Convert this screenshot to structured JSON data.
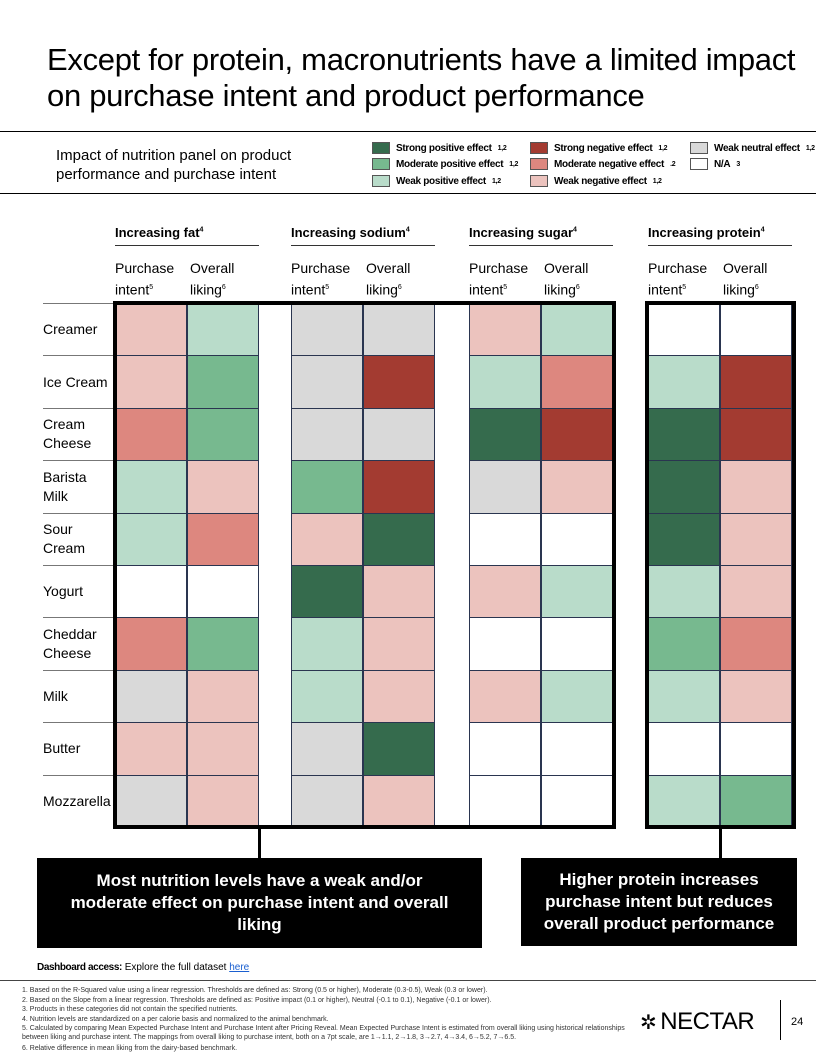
{
  "title": "Except for protein, macronutrients have a limited impact on purchase intent and product performance",
  "subtitle": "Impact of nutrition panel on product performance and purchase intent",
  "colors": {
    "SP": "#356b4d",
    "MP": "#77b98f",
    "WP": "#b9dcca",
    "SN": "#a33b31",
    "MN": "#dd877f",
    "WN": "#ecc3be",
    "WU": "#d9d9d9",
    "NA": "#ffffff"
  },
  "legend": [
    {
      "code": "SP",
      "label": "Strong positive effect",
      "sup": "1,2"
    },
    {
      "code": "MP",
      "label": "Moderate positive effect",
      "sup": "1,2"
    },
    {
      "code": "WP",
      "label": "Weak positive effect",
      "sup": "1,2"
    },
    {
      "code": "SN",
      "label": "Strong negative effect",
      "sup": "1,2"
    },
    {
      "code": "MN",
      "label": "Moderate negative effect",
      "sup": ".2"
    },
    {
      "code": "WN",
      "label": "Weak negative effect",
      "sup": "1,2"
    },
    {
      "code": "WU",
      "label": "Weak neutral effect",
      "sup": "1,2"
    },
    {
      "code": "NA",
      "label": "N/A",
      "sup": "3"
    }
  ],
  "groups": [
    {
      "label": "Increasing fat",
      "sup": "4"
    },
    {
      "label": "Increasing sodium",
      "sup": "4"
    },
    {
      "label": "Increasing sugar",
      "sup": "4"
    },
    {
      "label": "Increasing protein",
      "sup": "4"
    }
  ],
  "columns": {
    "purchase": "Purchase intent",
    "purchase_sup": "5",
    "liking": "Overall liking",
    "liking_sup": "6"
  },
  "rows": [
    {
      "label": "Creamer",
      "cells": [
        "WN",
        "WP",
        "WU",
        "WU",
        "WN",
        "WP",
        "NA",
        "NA"
      ]
    },
    {
      "label": "Ice Cream",
      "cells": [
        "WN",
        "MP",
        "WU",
        "SN",
        "WP",
        "MN",
        "WP",
        "SN"
      ]
    },
    {
      "label": "Cream Cheese",
      "cells": [
        "MN",
        "MP",
        "WU",
        "WU",
        "SP",
        "SN",
        "SP",
        "SN"
      ]
    },
    {
      "label": "Barista Milk",
      "cells": [
        "WP",
        "WN",
        "MP",
        "SN",
        "WU",
        "WN",
        "SP",
        "WN"
      ]
    },
    {
      "label": "Sour Cream",
      "cells": [
        "WP",
        "MN",
        "WN",
        "SP",
        "NA",
        "NA",
        "SP",
        "WN"
      ]
    },
    {
      "label": "Yogurt",
      "cells": [
        "NA",
        "NA",
        "SP",
        "WN",
        "WN",
        "WP",
        "WP",
        "WN"
      ]
    },
    {
      "label": "Cheddar Cheese",
      "cells": [
        "MN",
        "MP",
        "WP",
        "WN",
        "NA",
        "NA",
        "MP",
        "MN"
      ]
    },
    {
      "label": "Milk",
      "cells": [
        "WU",
        "WN",
        "WP",
        "WN",
        "WN",
        "WP",
        "WP",
        "WN"
      ]
    },
    {
      "label": "Butter",
      "cells": [
        "WN",
        "WN",
        "WU",
        "SP",
        "NA",
        "NA",
        "NA",
        "NA"
      ]
    },
    {
      "label": "Mozzarella",
      "cells": [
        "WU",
        "WN",
        "WU",
        "WN",
        "NA",
        "NA",
        "WP",
        "MP"
      ]
    }
  ],
  "callouts": {
    "left": "Most nutrition levels have a weak and/or moderate effect on purchase intent and overall liking",
    "right": "Higher protein increases purchase intent but reduces overall product performance"
  },
  "dashboard": {
    "label": "Dashboard access:",
    "text": "Explore the full dataset",
    "link": "here"
  },
  "footnotes": [
    "1.  Based on the R-Squared value using a linear regression. Thresholds are defined as: Strong (0.5 or higher), Moderate (0.3-0.5), Weak (0.3 or lower).",
    "2.  Based on the Slope from a linear regression. Thresholds are defined as: Positive impact (0.1 or higher), Neutral (-0.1 to 0.1), Negative (-0.1 or lower).",
    "3.  Products in these categories did not contain the specified nutrients.",
    "4.  Nutrition levels are standardized on a per calorie basis and normalized to the animal benchmark.",
    "5.  Calculated by comparing Mean Expected Purchase Intent and Purchase Intent after Pricing Reveal. Mean Expected Purchase Intent is estimated from overall liking using historical relationships between liking and purchase intent. The mappings from overall liking to purchase intent, both on a 7pt scale, are 1→1.1, 2→1.8, 3→2.7, 4→3.4, 6→5.2, 7→6.5.",
    "6.  Relative difference in mean liking from the dairy-based benchmark."
  ],
  "logo": "NECTAR",
  "page": "24"
}
